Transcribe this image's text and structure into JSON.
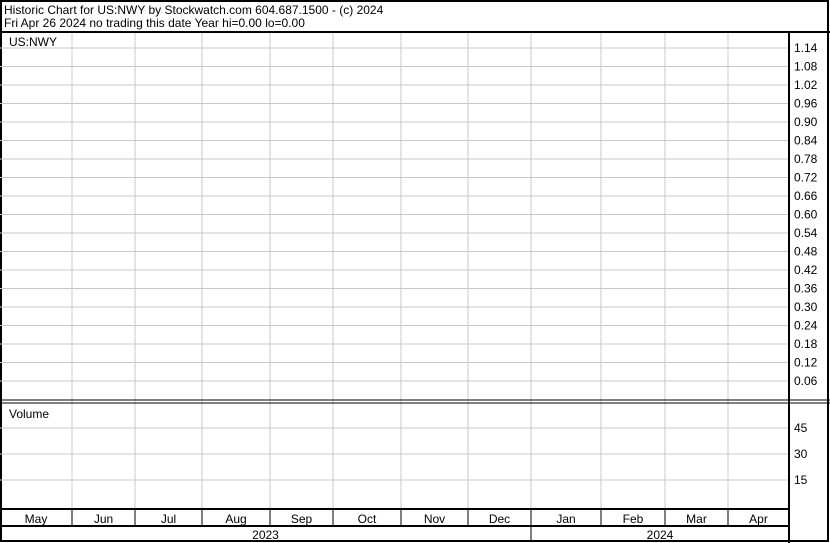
{
  "header": {
    "title": "Historic Chart for US:NWY by Stockwatch.com 604.687.1500 - (c) 2024",
    "subtitle": "Fri Apr 26 2024   no trading this date  Year hi=0.00  lo=0.00"
  },
  "chart_data": [
    {
      "type": "line",
      "title": "US:NWY",
      "x_categories": [
        "May",
        "Jun",
        "Jul",
        "Aug",
        "Sep",
        "Oct",
        "Nov",
        "Dec",
        "Jan",
        "Feb",
        "Mar",
        "Apr"
      ],
      "years": [
        {
          "label": "2023",
          "months": 8
        },
        {
          "label": "2024",
          "months": 4
        }
      ],
      "y_ticks": [
        "1.14",
        "1.08",
        "1.02",
        "0.96",
        "0.90",
        "0.84",
        "0.78",
        "0.72",
        "0.66",
        "0.60",
        "0.54",
        "0.48",
        "0.42",
        "0.36",
        "0.30",
        "0.24",
        "0.18",
        "0.12",
        "0.06"
      ],
      "ylim": [
        0.0,
        1.14
      ],
      "grid": true,
      "values": []
    },
    {
      "type": "bar",
      "title": "Volume",
      "y_ticks": [
        "45",
        "30",
        "15"
      ],
      "grid": true,
      "values": []
    }
  ],
  "colors": {
    "grid": "#c8c8c8",
    "border": "#000000"
  }
}
